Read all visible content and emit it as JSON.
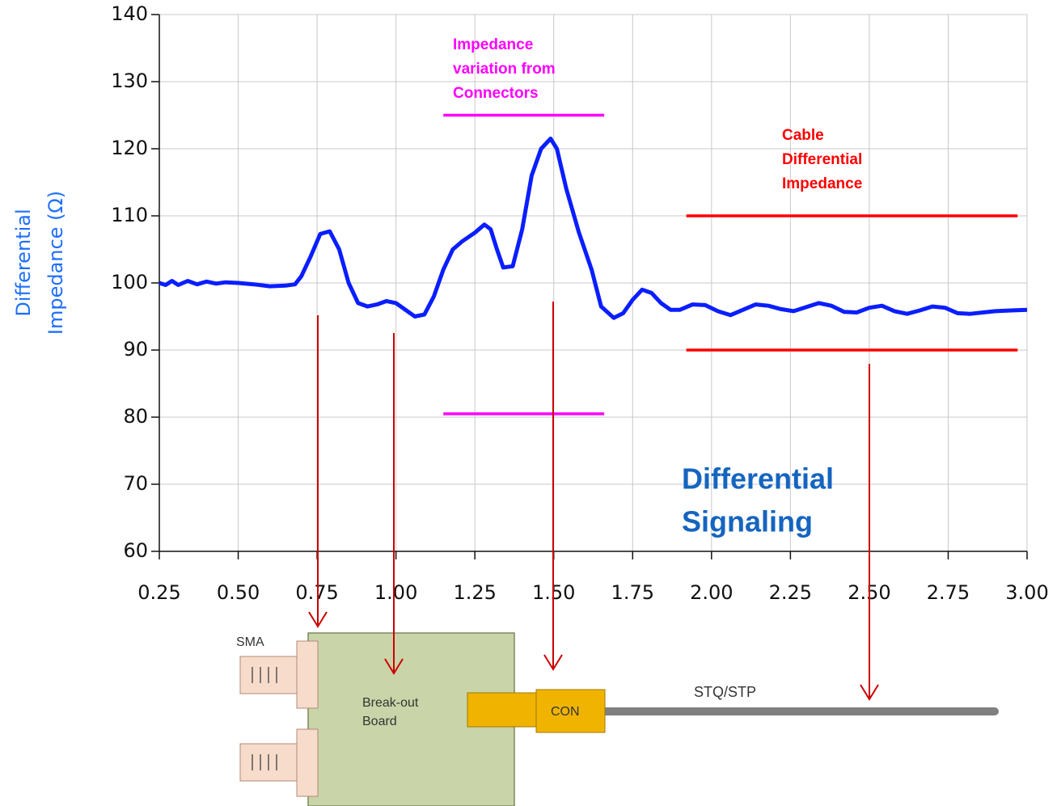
{
  "chart_data": {
    "type": "line",
    "ylabel": [
      "Differential",
      "Impedance (Ω)"
    ],
    "xlim": [
      0.25,
      3.0
    ],
    "ylim": [
      60,
      140
    ],
    "xticks": [
      0.25,
      {
        "value": 0.5,
        "label": "0.50"
      },
      0.75,
      {
        "value": 1.0,
        "label": "1.00"
      },
      1.25,
      {
        "value": 1.5,
        "label": "1.50"
      },
      1.75,
      {
        "value": 2.0,
        "label": "2.00"
      },
      2.25,
      {
        "value": 2.5,
        "label": "2.50"
      },
      2.75,
      {
        "value": 3.0,
        "label": "3.00"
      }
    ],
    "yticks": [
      60,
      70,
      80,
      90,
      100,
      110,
      120,
      130,
      140
    ],
    "grid": true,
    "x": [
      0.25,
      0.27,
      0.29,
      0.31,
      0.34,
      0.37,
      0.4,
      0.43,
      0.46,
      0.5,
      0.55,
      0.6,
      0.65,
      0.68,
      0.7,
      0.73,
      0.76,
      0.79,
      0.82,
      0.85,
      0.88,
      0.91,
      0.94,
      0.97,
      1.0,
      1.03,
      1.06,
      1.09,
      1.12,
      1.15,
      1.18,
      1.21,
      1.25,
      1.28,
      1.3,
      1.32,
      1.34,
      1.37,
      1.4,
      1.43,
      1.46,
      1.49,
      1.51,
      1.54,
      1.58,
      1.62,
      1.65,
      1.69,
      1.72,
      1.75,
      1.78,
      1.81,
      1.84,
      1.87,
      1.9,
      1.94,
      1.98,
      2.02,
      2.06,
      2.1,
      2.14,
      2.18,
      2.22,
      2.26,
      2.3,
      2.34,
      2.38,
      2.42,
      2.46,
      2.5,
      2.54,
      2.58,
      2.62,
      2.66,
      2.7,
      2.74,
      2.78,
      2.82,
      2.86,
      2.9,
      2.95,
      3.0
    ],
    "series": [
      {
        "color": "#0a1eff",
        "values": [
          100,
          99.7,
          100.3,
          99.7,
          100.3,
          99.8,
          100.2,
          99.9,
          100.1,
          100,
          99.8,
          99.5,
          99.6,
          99.8,
          101,
          104,
          107.3,
          107.7,
          105,
          100,
          97,
          96.5,
          96.8,
          97.3,
          97,
          96,
          95,
          95.3,
          98,
          102,
          105,
          106.2,
          107.5,
          108.7,
          108,
          105,
          102.3,
          102.5,
          108,
          116,
          120,
          121.5,
          120,
          114,
          107.5,
          102,
          96.5,
          94.8,
          95.5,
          97.5,
          99,
          98.5,
          97,
          96,
          96,
          96.8,
          96.7,
          95.8,
          95.2,
          96,
          96.8,
          96.6,
          96.1,
          95.8,
          96.4,
          97,
          96.6,
          95.7,
          95.6,
          96.3,
          96.6,
          95.8,
          95.4,
          95.9,
          96.5,
          96.3,
          95.5,
          95.4,
          95.6,
          95.8,
          95.9,
          96
        ]
      }
    ],
    "annotations": [
      {
        "label": [
          "Impedance",
          "variation from",
          "Connectors"
        ],
        "color": "#ff00ff",
        "upper": 125,
        "lower": 80.5,
        "xrange": [
          1.15,
          1.66
        ]
      },
      {
        "label": [
          "Cable",
          "Differential",
          "Impedance"
        ],
        "color": "#ff0000",
        "upper": 110,
        "lower": 90,
        "xrange": [
          1.92,
          2.97
        ]
      }
    ],
    "overlay_text": [
      "Differential",
      "Signaling"
    ]
  },
  "diagram": {
    "sma": "SMA",
    "board": [
      "Break-out",
      "Board"
    ],
    "connector": "CON",
    "cable": "STQ/STP"
  }
}
